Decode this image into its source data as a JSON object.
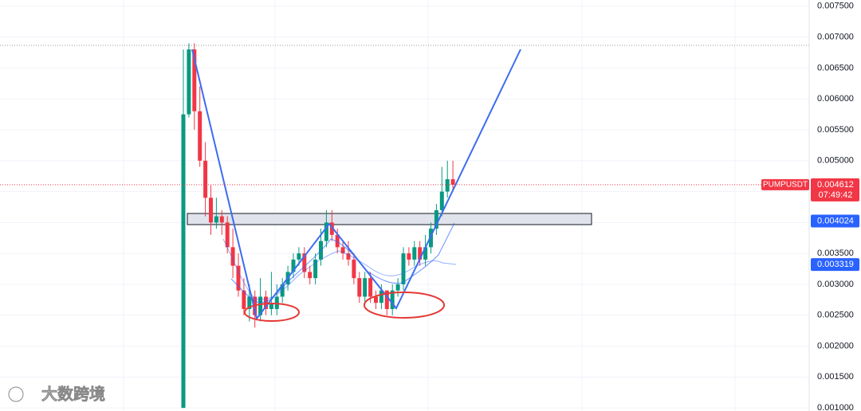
{
  "chart_data": {
    "type": "candlestick",
    "symbol": "PUMPUSDT",
    "open": [
      0.001,
      0.00575,
      0.0068,
      0.0058,
      0.005,
      0.0044,
      0.004,
      0.0041,
      0.004,
      0.0036,
      0.0033,
      0.0029,
      0.0026,
      0.0028,
      0.0025,
      0.0028,
      0.0026,
      0.0026,
      0.0028,
      0.003,
      0.0032,
      0.0034,
      0.0035,
      0.0032,
      0.0031,
      0.0034,
      0.0037,
      0.004,
      0.0038,
      0.0036,
      0.0035,
      0.0034,
      0.0031,
      0.0028,
      0.0031,
      0.0028,
      0.0027,
      0.0029,
      0.0026,
      0.0029,
      0.003,
      0.0035,
      0.0034,
      0.0036,
      0.0034,
      0.0036,
      0.0039,
      0.0042,
      0.0045,
      0.0047
    ],
    "high": [
      0.0068,
      0.0069,
      0.0069,
      0.0062,
      0.0053,
      0.0046,
      0.0044,
      0.0042,
      0.0041,
      0.0039,
      0.0035,
      0.0031,
      0.003,
      0.0029,
      0.0031,
      0.0029,
      0.0032,
      0.003,
      0.0031,
      0.0033,
      0.0035,
      0.0036,
      0.0036,
      0.0033,
      0.0035,
      0.0039,
      0.0042,
      0.0042,
      0.0039,
      0.0037,
      0.0037,
      0.0035,
      0.0032,
      0.0032,
      0.0032,
      0.0029,
      0.003,
      0.0029,
      0.003,
      0.0031,
      0.0036,
      0.0036,
      0.0037,
      0.0037,
      0.0038,
      0.004,
      0.0043,
      0.0049,
      0.005,
      0.005
    ],
    "low": [
      0.001,
      0.0057,
      0.0055,
      0.0049,
      0.0041,
      0.0038,
      0.0039,
      0.0038,
      0.0035,
      0.0031,
      0.0028,
      0.0025,
      0.0024,
      0.0023,
      0.0024,
      0.0025,
      0.0025,
      0.0025,
      0.0027,
      0.0029,
      0.0031,
      0.0033,
      0.0031,
      0.003,
      0.003,
      0.0033,
      0.0036,
      0.0037,
      0.0035,
      0.0034,
      0.0033,
      0.003,
      0.0027,
      0.0027,
      0.0027,
      0.0026,
      0.0026,
      0.0025,
      0.0025,
      0.0028,
      0.0029,
      0.0033,
      0.0033,
      0.0033,
      0.0033,
      0.0035,
      0.0038,
      0.0041,
      0.0044,
      0.0045
    ],
    "close": [
      0.00575,
      0.0068,
      0.0058,
      0.005,
      0.0044,
      0.004,
      0.0041,
      0.004,
      0.0036,
      0.0033,
      0.0029,
      0.0026,
      0.0028,
      0.0025,
      0.0028,
      0.0026,
      0.0027,
      0.0028,
      0.003,
      0.0032,
      0.0034,
      0.0035,
      0.0032,
      0.0031,
      0.0034,
      0.0037,
      0.004,
      0.0038,
      0.0036,
      0.0035,
      0.0034,
      0.0031,
      0.0028,
      0.0031,
      0.0028,
      0.0027,
      0.0029,
      0.0026,
      0.0029,
      0.003,
      0.0035,
      0.0034,
      0.0036,
      0.0034,
      0.0036,
      0.0039,
      0.0042,
      0.0045,
      0.0047,
      0.004612
    ],
    "up_color": "#089981",
    "down_color": "#f23645",
    "ylim": [
      0.00095,
      0.0076
    ],
    "yticks": [
      {
        "value": 0.001,
        "label": "0.001000"
      },
      {
        "value": 0.0015,
        "label": "0.001500"
      },
      {
        "value": 0.002,
        "label": "0.002000"
      },
      {
        "value": 0.0025,
        "label": "0.002500"
      },
      {
        "value": 0.003,
        "label": "0.003000"
      },
      {
        "value": 0.0035,
        "label": "0.003500"
      },
      {
        "value": 0.004,
        "label": "0.004000"
      },
      {
        "value": 0.0045,
        "label": "0.004500"
      },
      {
        "value": 0.005,
        "label": "0.005000"
      },
      {
        "value": 0.0055,
        "label": "0.005500"
      },
      {
        "value": 0.006,
        "label": "0.006000"
      },
      {
        "value": 0.0065,
        "label": "0.006500"
      },
      {
        "value": 0.007,
        "label": "0.007000"
      },
      {
        "value": 0.0075,
        "label": "0.007500"
      }
    ],
    "last_price": 0.004612,
    "countdown": "07:49:42",
    "levels": [
      0.004024,
      0.003319
    ],
    "level_color": "#2962ff",
    "watermark": "大数跨境"
  }
}
